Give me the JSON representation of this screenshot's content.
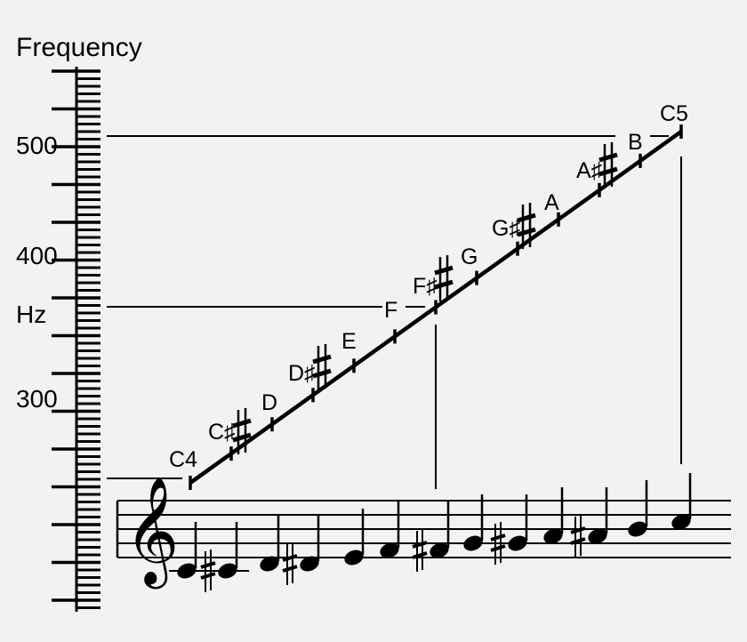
{
  "axis": {
    "title": "Frequency",
    "unit": "Hz",
    "tick_labels": [
      "500",
      "400",
      "300"
    ],
    "range_hz": [
      240,
      560
    ]
  },
  "scale_notes": [
    {
      "name": "C4",
      "freq_hz": 261.63
    },
    {
      "name": "C♯",
      "freq_hz": 277.18
    },
    {
      "name": "D",
      "freq_hz": 293.66
    },
    {
      "name": "D♯",
      "freq_hz": 311.13
    },
    {
      "name": "E",
      "freq_hz": 329.63
    },
    {
      "name": "F",
      "freq_hz": 349.23
    },
    {
      "name": "F♯",
      "freq_hz": 369.99
    },
    {
      "name": "G",
      "freq_hz": 392.0
    },
    {
      "name": "G♯",
      "freq_hz": 415.3
    },
    {
      "name": "A",
      "freq_hz": 440.0
    },
    {
      "name": "A♯",
      "freq_hz": 466.16
    },
    {
      "name": "B",
      "freq_hz": 493.88
    },
    {
      "name": "C5",
      "freq_hz": 523.25
    }
  ],
  "clef_symbol": "𝄞",
  "colors": {
    "ink": "#000000",
    "background": "#f2f2f2"
  }
}
